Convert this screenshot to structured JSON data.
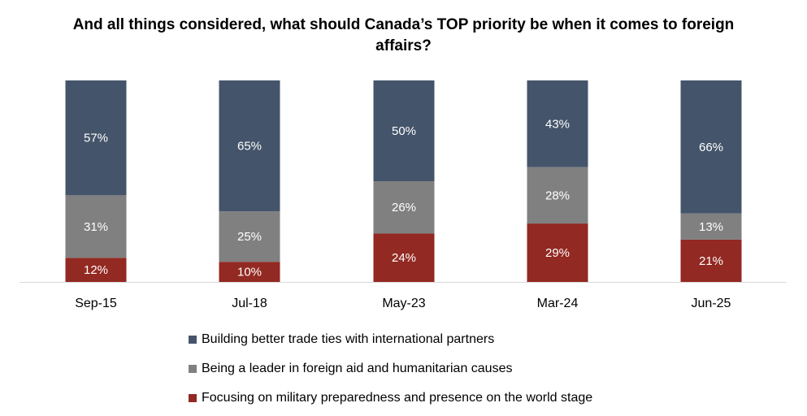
{
  "chart_data": {
    "type": "bar",
    "stacked": true,
    "normalized": true,
    "title": "And all things considered, what should Canada’s TOP priority be when it comes to foreign affairs?",
    "categories": [
      "Sep-15",
      "Jul-18",
      "May-23",
      "Mar-24",
      "Jun-25"
    ],
    "series": [
      {
        "name": "Building better trade ties with international partners",
        "color": "#44546a",
        "values": [
          57,
          65,
          50,
          43,
          66
        ],
        "labels": [
          "57%",
          "65%",
          "50%",
          "43%",
          "66%"
        ]
      },
      {
        "name": "Being a leader in foreign aid and humanitarian causes",
        "color": "#808080",
        "values": [
          31,
          25,
          26,
          28,
          13
        ],
        "labels": [
          "31%",
          "25%",
          "26%",
          "28%",
          "13%"
        ]
      },
      {
        "name": "Focusing on military preparedness and presence on the world stage",
        "color": "#922922",
        "values": [
          12,
          10,
          24,
          29,
          21
        ],
        "labels": [
          "12%",
          "10%",
          "24%",
          "29%",
          "21%"
        ]
      }
    ],
    "legend_position": "bottom",
    "grid": false
  }
}
